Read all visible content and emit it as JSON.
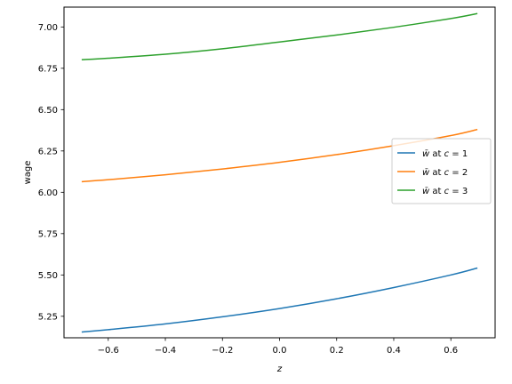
{
  "chart_data": {
    "type": "line",
    "xlabel": "z",
    "ylabel": "wage",
    "xlim": [
      -0.755,
      0.755
    ],
    "ylim": [
      5.12,
      7.12
    ],
    "x_ticks": [
      -0.6,
      -0.4,
      -0.2,
      0.0,
      0.2,
      0.4,
      0.6
    ],
    "x_tick_labels": [
      "−0.6",
      "−0.4",
      "−0.2",
      "0.0",
      "0.2",
      "0.4",
      "0.6"
    ],
    "y_ticks": [
      5.25,
      5.5,
      5.75,
      6.0,
      6.25,
      6.5,
      6.75,
      7.0
    ],
    "y_tick_labels": [
      "5.25",
      "5.50",
      "5.75",
      "6.00",
      "6.25",
      "6.50",
      "6.75",
      "7.00"
    ],
    "grid": false,
    "legend_position": "center-right",
    "series": [
      {
        "name": "w̄ at c = 1",
        "legend_symbol": "w̄",
        "legend_mid": " at ",
        "legend_var": "c",
        "legend_eq": " = 1",
        "color": "#1f77b4",
        "x": [
          -0.693,
          -0.6,
          -0.4,
          -0.2,
          0.0,
          0.2,
          0.4,
          0.6,
          0.693
        ],
        "y": [
          5.155,
          5.169,
          5.204,
          5.247,
          5.297,
          5.356,
          5.424,
          5.5,
          5.542
        ]
      },
      {
        "name": "w̄ at c = 2",
        "legend_symbol": "w̄",
        "legend_mid": " at ",
        "legend_var": "c",
        "legend_eq": " = 2",
        "color": "#ff7f0e",
        "x": [
          -0.693,
          -0.6,
          -0.4,
          -0.2,
          0.0,
          0.2,
          0.4,
          0.6,
          0.693
        ],
        "y": [
          6.064,
          6.076,
          6.106,
          6.141,
          6.181,
          6.228,
          6.282,
          6.343,
          6.38
        ]
      },
      {
        "name": "w̄ at c = 3",
        "legend_symbol": "w̄",
        "legend_mid": " at ",
        "legend_var": "c",
        "legend_eq": " = 3",
        "color": "#2ca02c",
        "x": [
          -0.693,
          -0.6,
          -0.4,
          -0.2,
          0.0,
          0.2,
          0.4,
          0.6,
          0.693
        ],
        "y": [
          6.802,
          6.811,
          6.835,
          6.868,
          6.909,
          6.951,
          6.998,
          7.051,
          7.081
        ]
      }
    ]
  }
}
